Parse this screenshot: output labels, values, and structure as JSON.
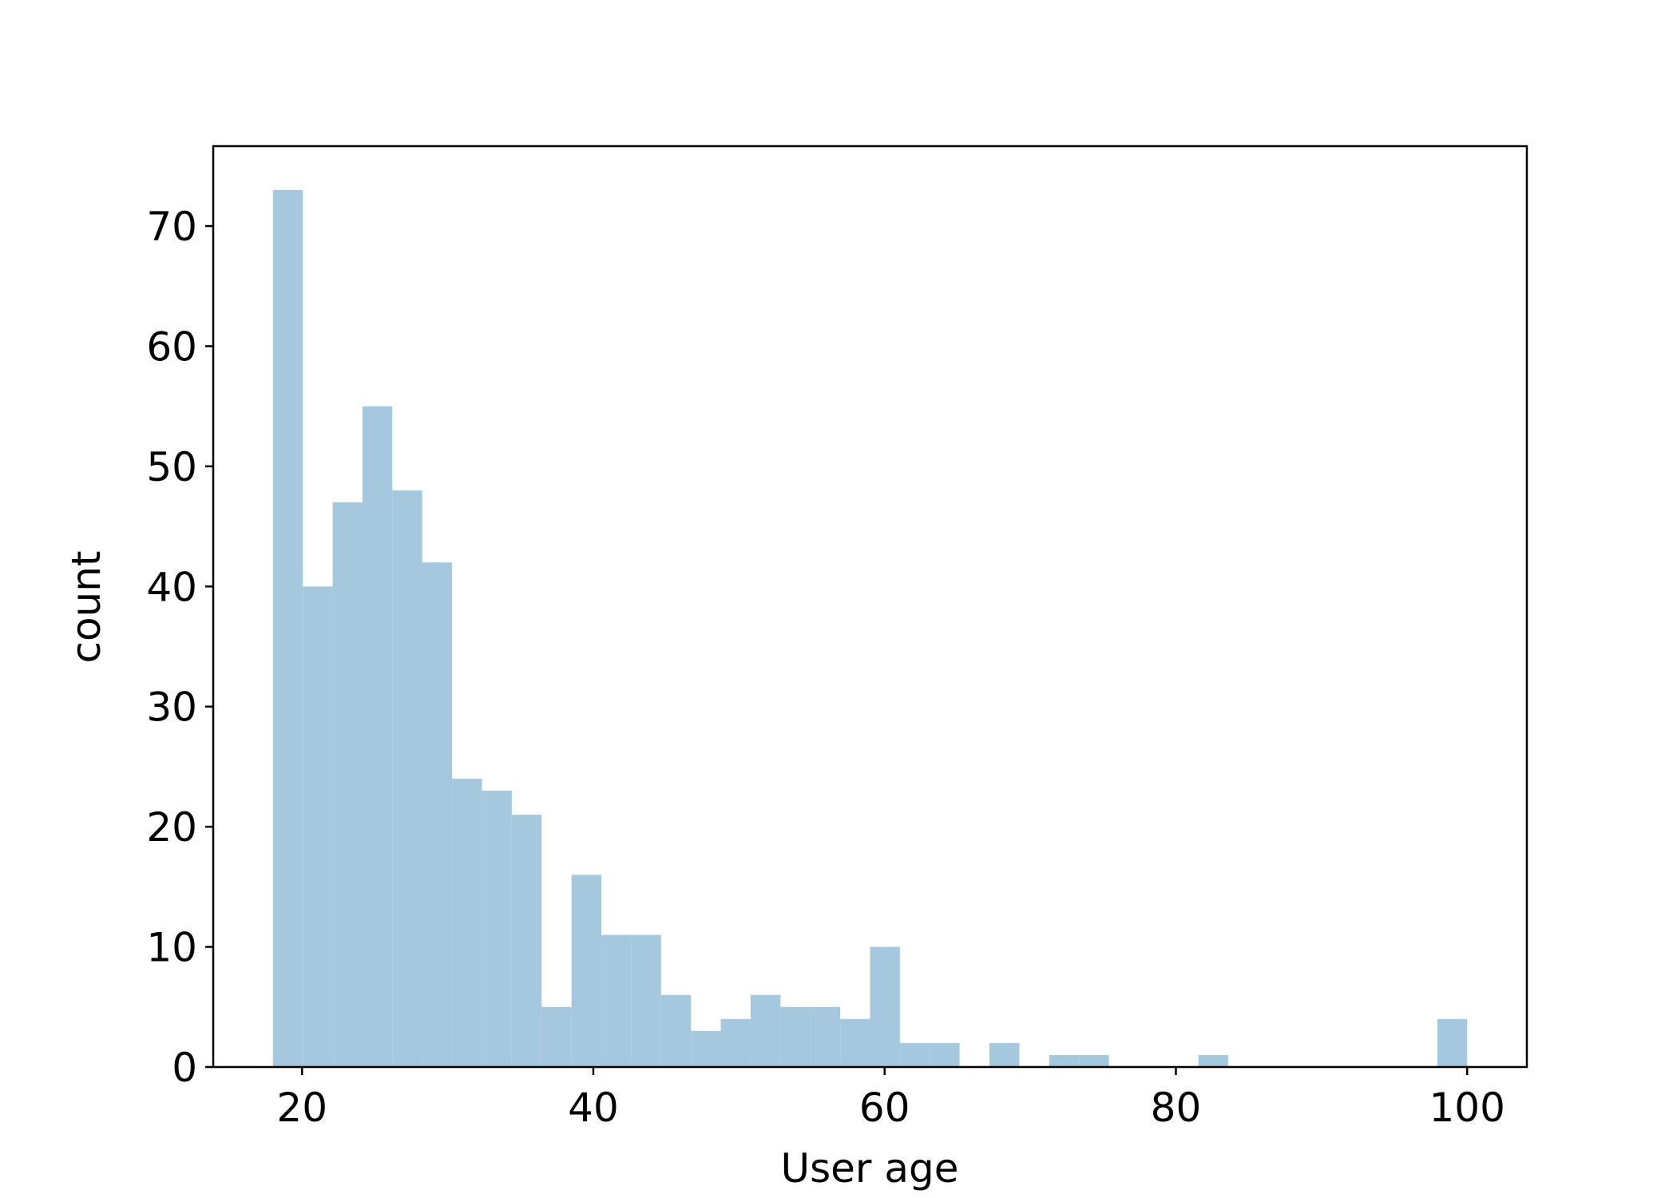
{
  "chart_data": {
    "type": "histogram",
    "x_label": "User age",
    "y_label": "count",
    "bins": [
      18,
      20.05,
      22.1,
      24.15,
      26.2,
      28.25,
      30.3,
      32.35,
      34.4,
      36.45,
      38.5,
      40.55,
      42.6,
      44.65,
      46.7,
      48.75,
      50.8,
      52.85,
      54.9,
      56.95,
      59,
      61.05,
      63.1,
      65.15,
      67.2,
      69.25,
      71.3,
      73.35,
      75.4,
      77.45,
      79.5,
      81.55,
      83.6,
      85.65,
      87.7,
      89.75,
      91.8,
      93.85,
      95.9,
      97.95,
      100
    ],
    "counts": [
      73,
      40,
      47,
      55,
      48,
      42,
      24,
      23,
      21,
      5,
      16,
      11,
      11,
      6,
      3,
      4,
      6,
      5,
      5,
      4,
      10,
      2,
      2,
      0,
      2,
      0,
      1,
      1,
      0,
      0,
      0,
      1,
      0,
      0,
      0,
      0,
      0,
      0,
      0,
      4
    ],
    "color": "#a6c8df",
    "xlim": [
      13.9,
      104.1
    ],
    "xticks": [
      20,
      40,
      60,
      80,
      100
    ],
    "ylim": [
      0,
      76.65
    ],
    "yticks": [
      0,
      10,
      20,
      30,
      40,
      50,
      60,
      70
    ],
    "grid": false
  }
}
